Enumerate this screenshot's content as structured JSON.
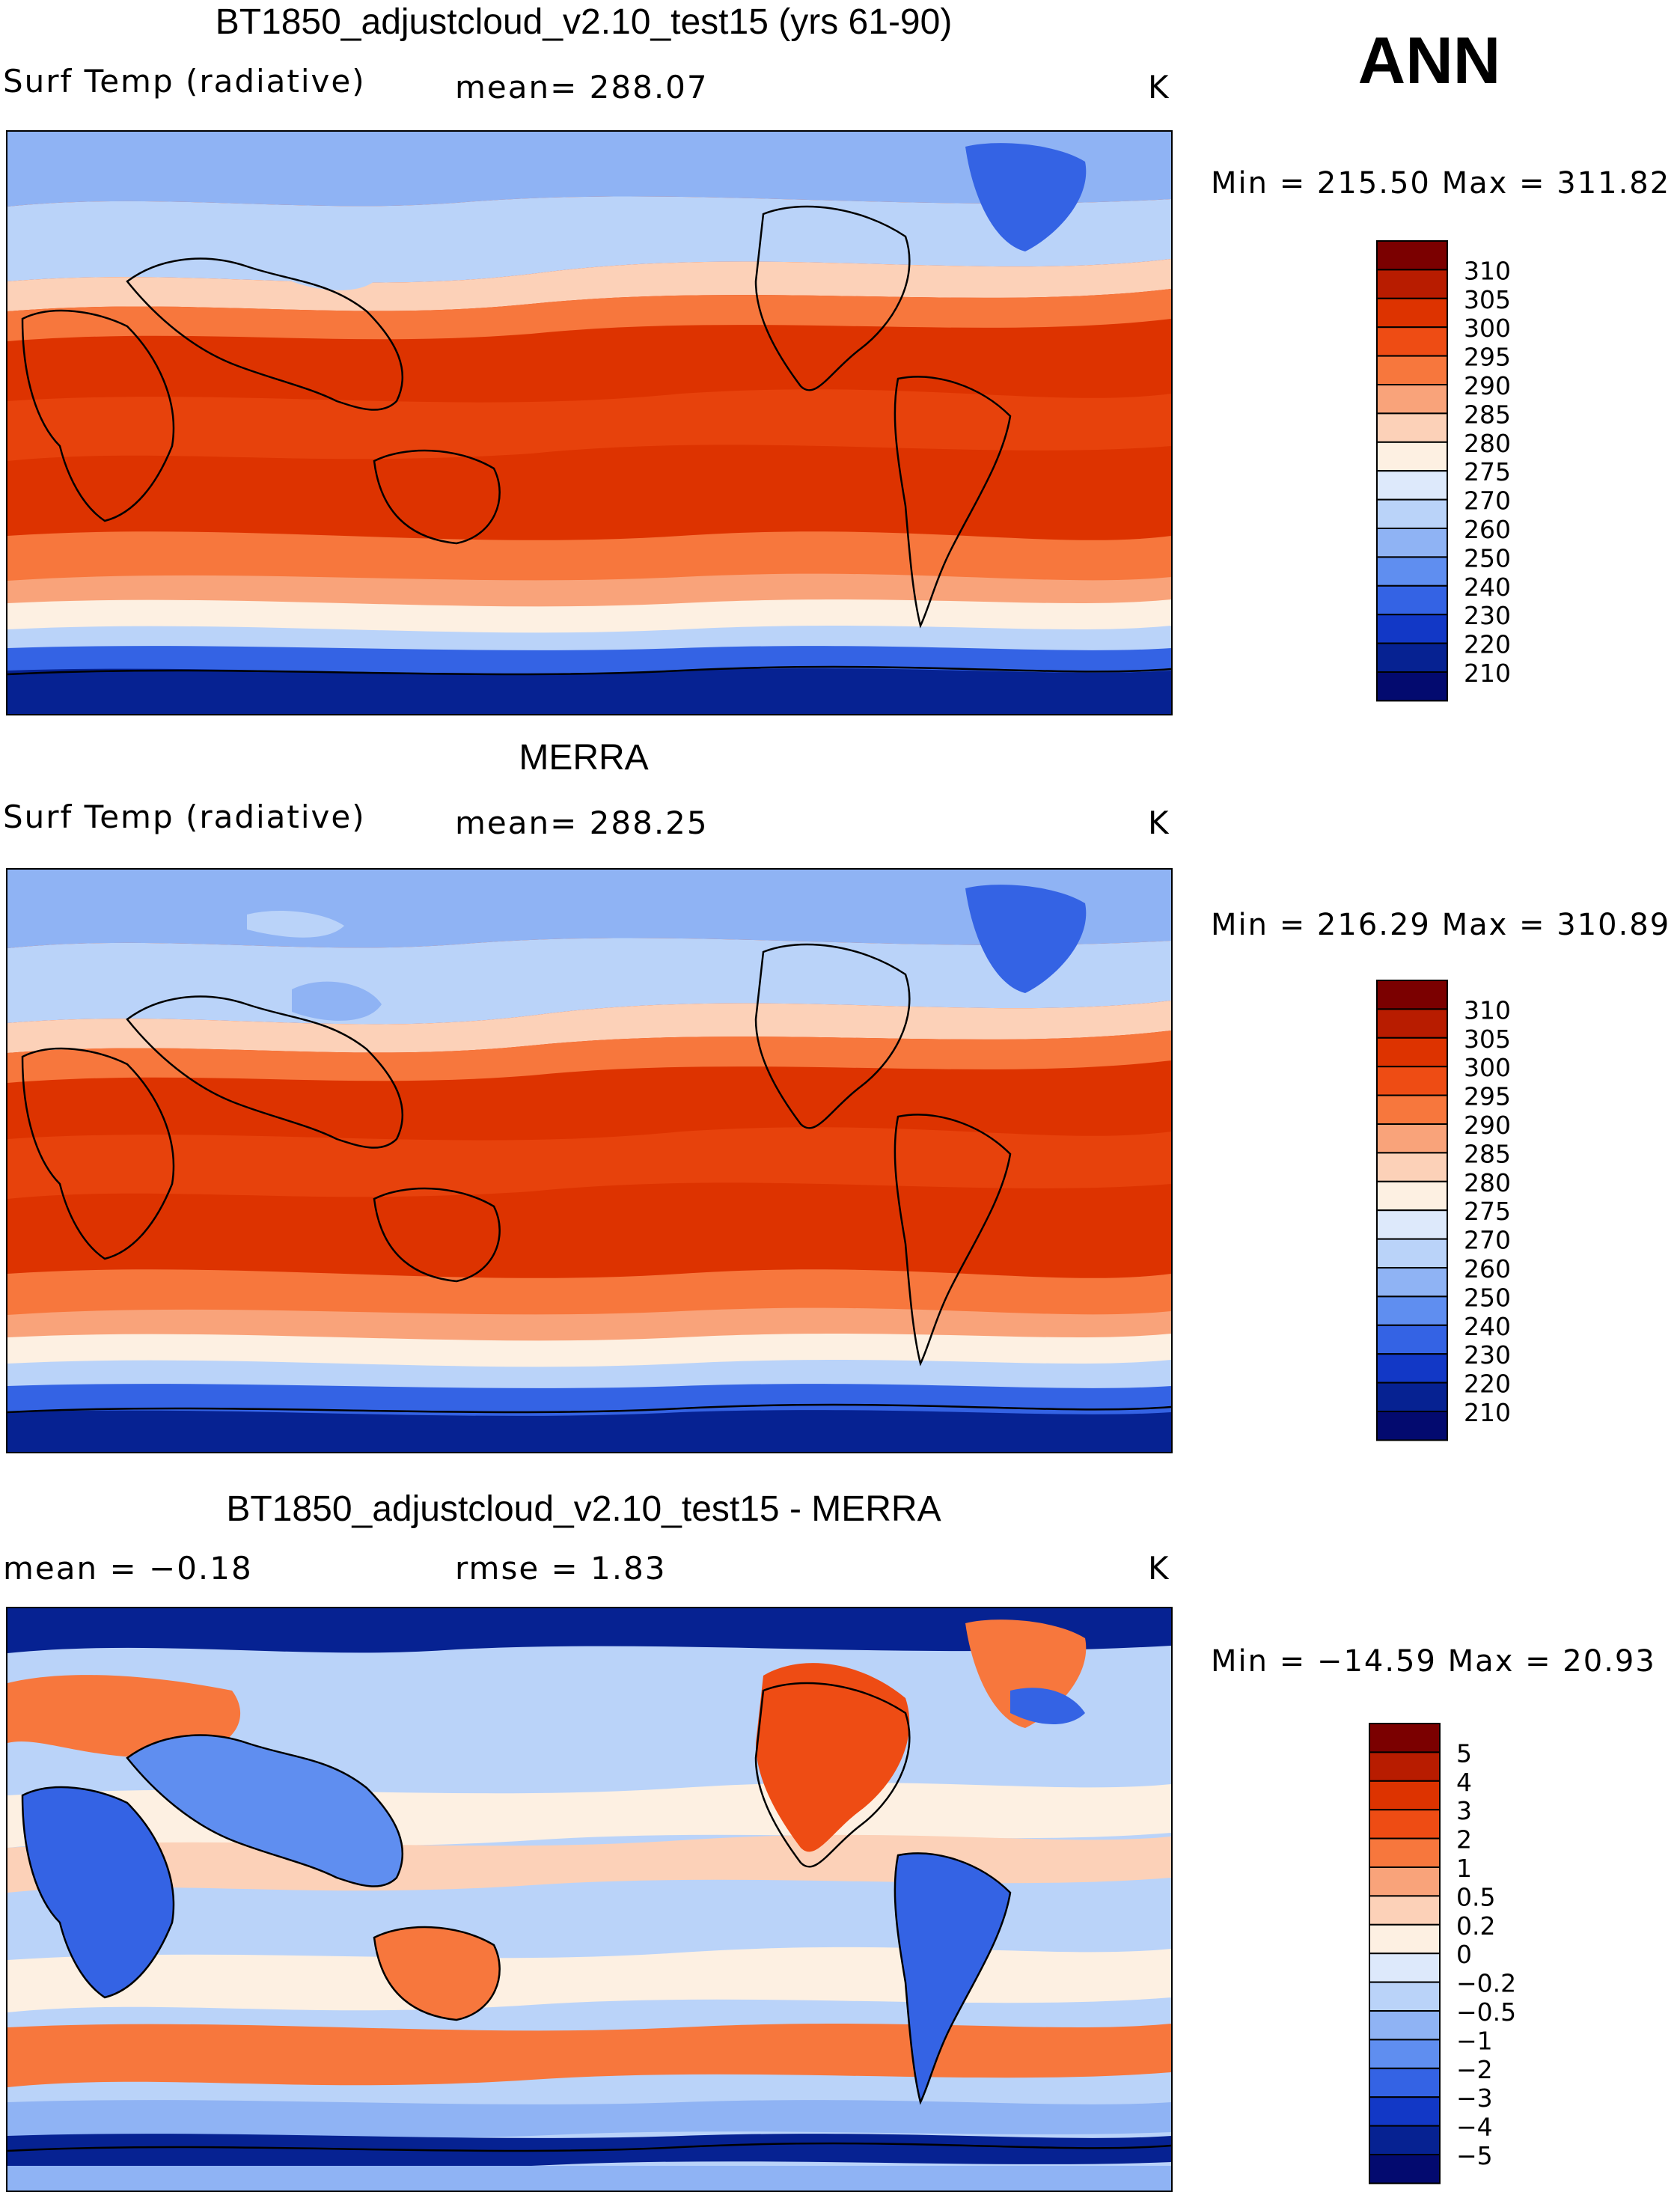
{
  "season": "ANN",
  "panels": [
    {
      "title": "BT1850_adjustcloud_v2.10_test15 (yrs 61-90)",
      "left_label": "Surf Temp (radiative)",
      "center_label": "mean= 288.07",
      "units": "K",
      "minmax": "Min = 215.50 Max = 311.82",
      "colorbar": {
        "labels": [
          "310",
          "305",
          "300",
          "295",
          "290",
          "285",
          "280",
          "275",
          "270",
          "260",
          "250",
          "240",
          "230",
          "220",
          "210"
        ],
        "colors": [
          "#7b0000",
          "#b81c00",
          "#dd3300",
          "#ee4c14",
          "#f7773d",
          "#f9a37a",
          "#fcd1b8",
          "#fdf0e2",
          "#dde9fb",
          "#bad3f9",
          "#8fb3f4",
          "#5f8ef0",
          "#3463e4",
          "#1238c6",
          "#062292",
          "#030a6f"
        ]
      }
    },
    {
      "title": "MERRA",
      "left_label": "Surf Temp (radiative)",
      "center_label": "mean= 288.25",
      "units": "K",
      "minmax": "Min = 216.29 Max = 310.89",
      "colorbar": {
        "labels": [
          "310",
          "305",
          "300",
          "295",
          "290",
          "285",
          "280",
          "275",
          "270",
          "260",
          "250",
          "240",
          "230",
          "220",
          "210"
        ],
        "colors": [
          "#7b0000",
          "#b81c00",
          "#dd3300",
          "#ee4c14",
          "#f7773d",
          "#f9a37a",
          "#fcd1b8",
          "#fdf0e2",
          "#dde9fb",
          "#bad3f9",
          "#8fb3f4",
          "#5f8ef0",
          "#3463e4",
          "#1238c6",
          "#062292",
          "#030a6f"
        ]
      }
    },
    {
      "title": "BT1850_adjustcloud_v2.10_test15 - MERRA",
      "left_label": "mean =   −0.18",
      "center_label": "rmse =    1.83",
      "units": "K",
      "minmax": "Min = −14.59 Max =  20.93",
      "colorbar": {
        "labels": [
          "5",
          "4",
          "3",
          "2",
          "1",
          "0.5",
          "0.2",
          "0",
          "−0.2",
          "−0.5",
          "−1",
          "−2",
          "−3",
          "−4",
          "−5"
        ],
        "colors": [
          "#7b0000",
          "#b81c00",
          "#dd3300",
          "#ee4c14",
          "#f7773d",
          "#f9a37a",
          "#fcd1b8",
          "#fdf0e2",
          "#dde9fb",
          "#bad3f9",
          "#8fb3f4",
          "#5f8ef0",
          "#3463e4",
          "#1238c6",
          "#062292",
          "#030a6f"
        ]
      }
    }
  ],
  "colors": {
    "very_hot": "#dd3300",
    "hot": "#ee4c14",
    "warm": "#f7773d",
    "mild": "#f9a37a",
    "cool": "#fcd1b8",
    "neutral": "#fdf0e2",
    "chill": "#dde9fb",
    "cold": "#bad3f9",
    "colder": "#8fb3f4",
    "freezing": "#3463e4",
    "polar": "#062292",
    "coast": "#000000"
  }
}
